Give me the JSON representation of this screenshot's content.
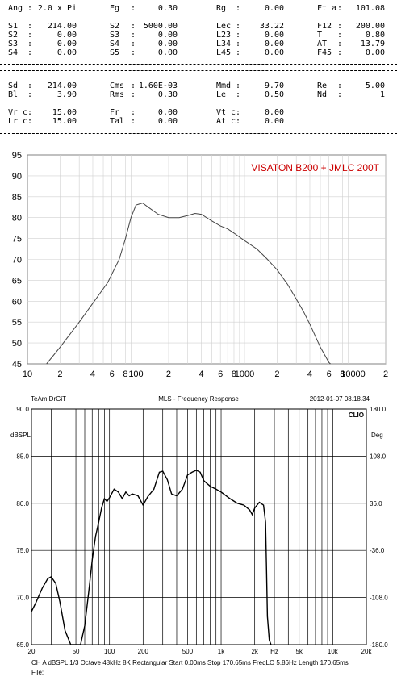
{
  "params": {
    "row1": [
      {
        "label": "Ang",
        "value": "2.0 x Pi"
      },
      {
        "label": "Eg",
        "value": "0.30"
      },
      {
        "label": "Rg",
        "value": "0.00"
      },
      {
        "label": "Ft a",
        "value": "101.08"
      }
    ],
    "block1": [
      [
        {
          "label": "S1",
          "value": "214.00"
        },
        {
          "label": "S2",
          "value": "5000.00"
        },
        {
          "label": "Lec",
          "value": "33.22"
        },
        {
          "label": "F12",
          "value": "200.00"
        }
      ],
      [
        {
          "label": "S2",
          "value": "0.00"
        },
        {
          "label": "S3",
          "value": "0.00"
        },
        {
          "label": "L23",
          "value": "0.00"
        },
        {
          "label": "T",
          "value": "0.80"
        }
      ],
      [
        {
          "label": "S3",
          "value": "0.00"
        },
        {
          "label": "S4",
          "value": "0.00"
        },
        {
          "label": "L34",
          "value": "0.00"
        },
        {
          "label": "AT",
          "value": "13.79"
        }
      ],
      [
        {
          "label": "S4",
          "value": "0.00"
        },
        {
          "label": "S5",
          "value": "0.00"
        },
        {
          "label": "L45",
          "value": "0.00"
        },
        {
          "label": "F45",
          "value": "0.00"
        }
      ]
    ],
    "block2": [
      [
        {
          "label": "Sd",
          "value": "214.00"
        },
        {
          "label": "Cms",
          "value": "1.60E-03"
        },
        {
          "label": "Mmd",
          "value": "9.70"
        },
        {
          "label": "Re",
          "value": "5.00"
        }
      ],
      [
        {
          "label": "Bl",
          "value": "3.90"
        },
        {
          "label": "Rms",
          "value": "0.30"
        },
        {
          "label": "Le",
          "value": "0.50"
        },
        {
          "label": "Nd",
          "value": "1"
        }
      ]
    ],
    "block3": [
      [
        {
          "label": "Vr c",
          "value": "15.00"
        },
        {
          "label": "Fr",
          "value": "0.00"
        },
        {
          "label": "Vt c",
          "value": "0.00"
        }
      ],
      [
        {
          "label": "Lr c",
          "value": "15.00"
        },
        {
          "label": "Tal",
          "value": "0.00"
        },
        {
          "label": "At c",
          "value": "0.00"
        }
      ]
    ]
  },
  "chart_data": [
    {
      "type": "line",
      "title": "VISATON B200 + JMLC 200T",
      "xscale": "log",
      "xlim": [
        10,
        20000
      ],
      "ylim": [
        45,
        95
      ],
      "y_ticks": [
        45,
        50,
        55,
        60,
        65,
        70,
        75,
        80,
        85,
        90,
        95
      ],
      "x_tick_labels": [
        "10",
        "2",
        "4",
        "6",
        "8",
        "100",
        "2",
        "4",
        "6",
        "8",
        "1000",
        "2",
        "4",
        "6",
        "8",
        "10000",
        "2"
      ],
      "x_tick_values": [
        10,
        20,
        40,
        60,
        80,
        100,
        200,
        400,
        600,
        800,
        1000,
        2000,
        4000,
        6000,
        8000,
        10000,
        20000
      ],
      "grid": true,
      "colors": {
        "line": "#444444",
        "title": "#cc0000",
        "grid": "#d0d0d0"
      },
      "series": [
        {
          "x": [
            15,
            20,
            30,
            40,
            55,
            70,
            80,
            90,
            100,
            115,
            130,
            160,
            200,
            250,
            300,
            350,
            400,
            500,
            600,
            700,
            800,
            1000,
            1300,
            1600,
            2000,
            2500,
            3000,
            3500,
            4000,
            5000,
            6000,
            6200
          ],
          "y": [
            45,
            49,
            55,
            59.5,
            64.5,
            70,
            75,
            80,
            83,
            83.5,
            82.5,
            80.8,
            80,
            80,
            80.5,
            81,
            80.8,
            79.2,
            78,
            77.3,
            76.3,
            74.5,
            72.5,
            70.2,
            67.5,
            64,
            60.5,
            57.5,
            54.5,
            49,
            45.3,
            45
          ]
        }
      ]
    },
    {
      "type": "line",
      "title": "MLS - Frequency Response",
      "header_left": "TeAm DrGiT",
      "header_right": "2012-01-07 08.18.34",
      "brand": "CLIO",
      "ylabel_left": "dBSPL",
      "ylabel_right": "Deg",
      "xscale": "log",
      "xlim": [
        20,
        20000
      ],
      "ylim": [
        65,
        90
      ],
      "y_ticks": [
        "90.0",
        "85.0",
        "80.0",
        "75.0",
        "70.0",
        "65.0"
      ],
      "y_tick_values": [
        90,
        85,
        80,
        75,
        70,
        65
      ],
      "y2_ticks": [
        "180.0",
        "108.0",
        "36.0",
        "-36.0",
        "-108.0",
        "-180.0"
      ],
      "x_tick_labels": [
        "20",
        "50",
        "100",
        "200",
        "500",
        "1k",
        "2k",
        "Hz",
        "5k",
        "10k",
        "20k"
      ],
      "x_tick_values": [
        20,
        50,
        100,
        200,
        500,
        1000,
        2000,
        3000,
        5000,
        10000,
        20000
      ],
      "footer": "CH A  dBSPL  1/3 Octave  48kHz  8K  Rectangular  Start 0.00ms   Stop 170.65ms   FreqLO 5.86Hz   Length 170.65ms",
      "footer2": "File:",
      "colors": {
        "line": "#000000",
        "grid": "#000000"
      },
      "series": [
        {
          "x": [
            20,
            22,
            25,
            28,
            30,
            33,
            36,
            40,
            45,
            50,
            55,
            60,
            65,
            70,
            75,
            80,
            85,
            90,
            95,
            100,
            110,
            120,
            130,
            140,
            150,
            160,
            180,
            200,
            220,
            250,
            280,
            300,
            330,
            360,
            400,
            450,
            500,
            550,
            600,
            650,
            700,
            800,
            900,
            1000,
            1200,
            1400,
            1600,
            1800,
            1900,
            2000,
            2200,
            2400,
            2500,
            2550,
            2600,
            2700,
            2800
          ],
          "y": [
            68.5,
            69.5,
            71,
            72,
            72.2,
            71.5,
            69.5,
            66.5,
            64.5,
            64.5,
            65,
            67,
            70.5,
            74,
            76.5,
            78,
            79.5,
            80.5,
            80.2,
            80.6,
            81.5,
            81.2,
            80.5,
            81.2,
            80.8,
            81,
            80.8,
            79.8,
            80.7,
            81.5,
            83.3,
            83.4,
            82.5,
            81,
            80.8,
            81.5,
            83,
            83.3,
            83.5,
            83.3,
            82.4,
            81.8,
            81.5,
            81.2,
            80.5,
            80,
            79.8,
            79.3,
            78.8,
            79.5,
            80.1,
            79.8,
            78,
            73,
            68,
            65.5,
            64.5
          ]
        }
      ]
    }
  ]
}
